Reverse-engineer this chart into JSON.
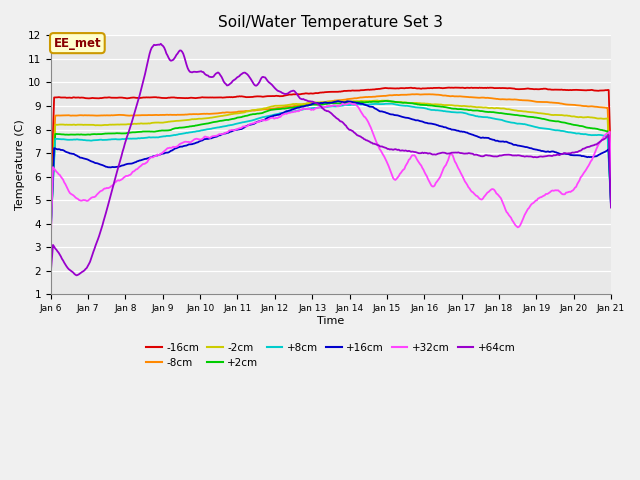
{
  "title": "Soil/Water Temperature Set 3",
  "xlabel": "Time",
  "ylabel": "Temperature (C)",
  "ylim": [
    1.0,
    12.0
  ],
  "yticks": [
    1.0,
    2.0,
    3.0,
    4.0,
    5.0,
    6.0,
    7.0,
    8.0,
    9.0,
    10.0,
    11.0,
    12.0
  ],
  "n_points": 500,
  "days": 15,
  "annotation_text": "EE_met",
  "annotation_bg": "#ffffcc",
  "annotation_border": "#cc9900",
  "annotation_text_color": "#880000",
  "bg_color": "#e8e8e8",
  "colors": {
    "-16cm": "#dd0000",
    "-8cm": "#ff8800",
    "-2cm": "#cccc00",
    "+2cm": "#00cc00",
    "+8cm": "#00cccc",
    "+16cm": "#0000cc",
    "+32cm": "#ff44ff",
    "+64cm": "#9900cc"
  }
}
